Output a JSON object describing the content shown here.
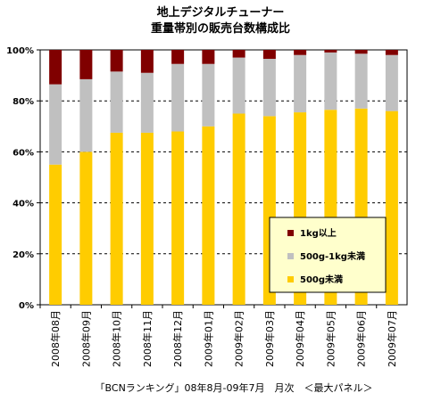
{
  "chart_data": {
    "type": "bar",
    "stacked": true,
    "title_line1": "地上デジタルチューナー",
    "title_line2": "重量帯別の販売台数構成比",
    "categories": [
      "2008年08月",
      "2008年09月",
      "2008年10月",
      "2008年11月",
      "2008年12月",
      "2009年01月",
      "2009年02月",
      "2009年03月",
      "2009年04月",
      "2009年05月",
      "2009年06月",
      "2009年07月"
    ],
    "yticks": [
      "0%",
      "20%",
      "40%",
      "60%",
      "80%",
      "100%"
    ],
    "ylim": [
      0,
      100
    ],
    "grid": "dashed horizontal",
    "legend_position": "bottom-right (inside plot)",
    "series": [
      {
        "name": "500g未満",
        "color": "#FFCC00",
        "values": [
          55,
          60,
          67.5,
          67.5,
          68,
          70,
          75,
          74,
          75.5,
          76.5,
          77,
          76
        ]
      },
      {
        "name": "500g-1kg未満",
        "color": "#C0C0C0",
        "values": [
          31.5,
          28.5,
          24,
          23.5,
          26.5,
          24.5,
          22,
          22.5,
          22.5,
          22.5,
          21.5,
          22
        ]
      },
      {
        "name": "1kg以上",
        "color": "#800000",
        "values": [
          13.5,
          11.5,
          8.5,
          9,
          5.5,
          5.5,
          3,
          3.5,
          2,
          1,
          1.5,
          2
        ]
      }
    ],
    "legend_order": [
      "1kg以上",
      "500g-1kg未満",
      "500g未満"
    ],
    "footer": "「BCNランキング」08年8月-09年7月　月次　＜最大パネル＞"
  }
}
